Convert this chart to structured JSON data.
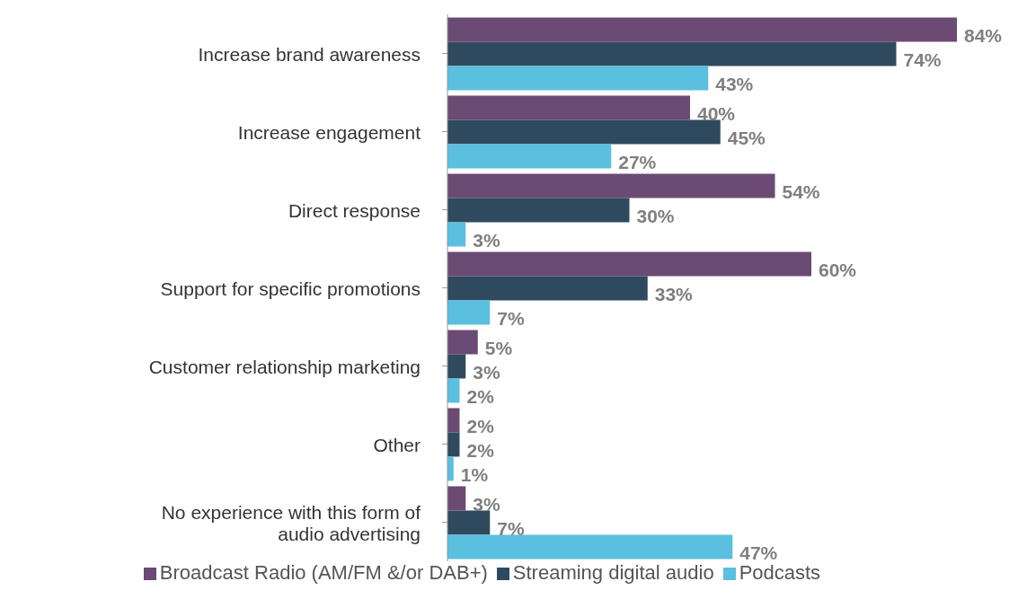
{
  "chart_data": {
    "type": "bar",
    "orientation": "horizontal",
    "categories": [
      "Increase brand awareness",
      "Increase engagement",
      "Direct response",
      "Support for specific promotions",
      "Customer relationship marketing",
      "Other",
      "No experience with this form of audio advertising"
    ],
    "series": [
      {
        "name": "Broadcast Radio (AM/FM &/or DAB+)",
        "color": "#6b4a73",
        "values": [
          84,
          40,
          54,
          60,
          5,
          2,
          3
        ],
        "value_labels": [
          "84%",
          "40%",
          "54%",
          "60%",
          "5%",
          "2%",
          "3%"
        ]
      },
      {
        "name": "Streaming digital audio",
        "color": "#2f4a5e",
        "values": [
          74,
          45,
          30,
          33,
          3,
          2,
          7
        ],
        "value_labels": [
          "74%",
          "45%",
          "30%",
          "33%",
          "3%",
          "2%",
          "7%"
        ]
      },
      {
        "name": "Podcasts",
        "color": "#5bbfe0",
        "values": [
          43,
          27,
          3,
          7,
          2,
          1,
          47
        ],
        "value_labels": [
          "43%",
          "27%",
          "3%",
          "7%",
          "2%",
          "1%",
          "47%"
        ]
      }
    ],
    "grid": false,
    "legend": "bottom"
  }
}
